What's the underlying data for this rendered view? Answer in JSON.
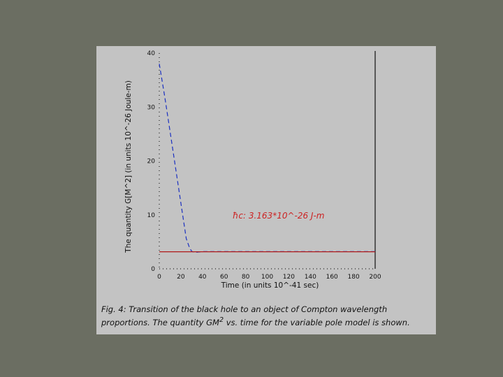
{
  "caption": {
    "line1": "Fig. 4:  Transition of the black hole to an object of Compton wavelength",
    "line2_pre": "proportions.  The quantity GM",
    "line2_sup": "2",
    "line2_post": "  vs. time for the variable pole model is shown."
  },
  "chart_data": {
    "type": "line",
    "xlabel": "Time (in units 10^-41 sec)",
    "ylabel": "The quantity G[M^2]  (in units 10^-26 Joule-m)",
    "xlim": [
      0,
      200
    ],
    "ylim": [
      0,
      40
    ],
    "xticks": [
      "0",
      "20",
      "40",
      "60",
      "80",
      "100",
      "120",
      "140",
      "160",
      "180",
      "200"
    ],
    "yticks": [
      "0",
      "10",
      "20",
      "30",
      "40"
    ],
    "annotations": [
      {
        "text": "ħc:   3.163*10^-26 J-m",
        "x": 68,
        "y": 9.3,
        "color": "#cc2222"
      }
    ],
    "series": [
      {
        "style": "dashed",
        "color": "#1a2fc0",
        "x": [
          0,
          5,
          10,
          15,
          20,
          25,
          28,
          30,
          32,
          35,
          40,
          60,
          100,
          150,
          200
        ],
        "values": [
          38,
          32,
          25.4,
          18.8,
          12.2,
          5.6,
          3.9,
          3.25,
          3.1,
          3.1,
          3.2,
          3.2,
          3.2,
          3.2,
          3.2
        ]
      },
      {
        "style": "solid",
        "color": "#b01818",
        "x": [
          0,
          200
        ],
        "values": [
          3.163,
          3.163
        ]
      }
    ],
    "vline_x": 200,
    "grid": false,
    "legend": "none"
  }
}
